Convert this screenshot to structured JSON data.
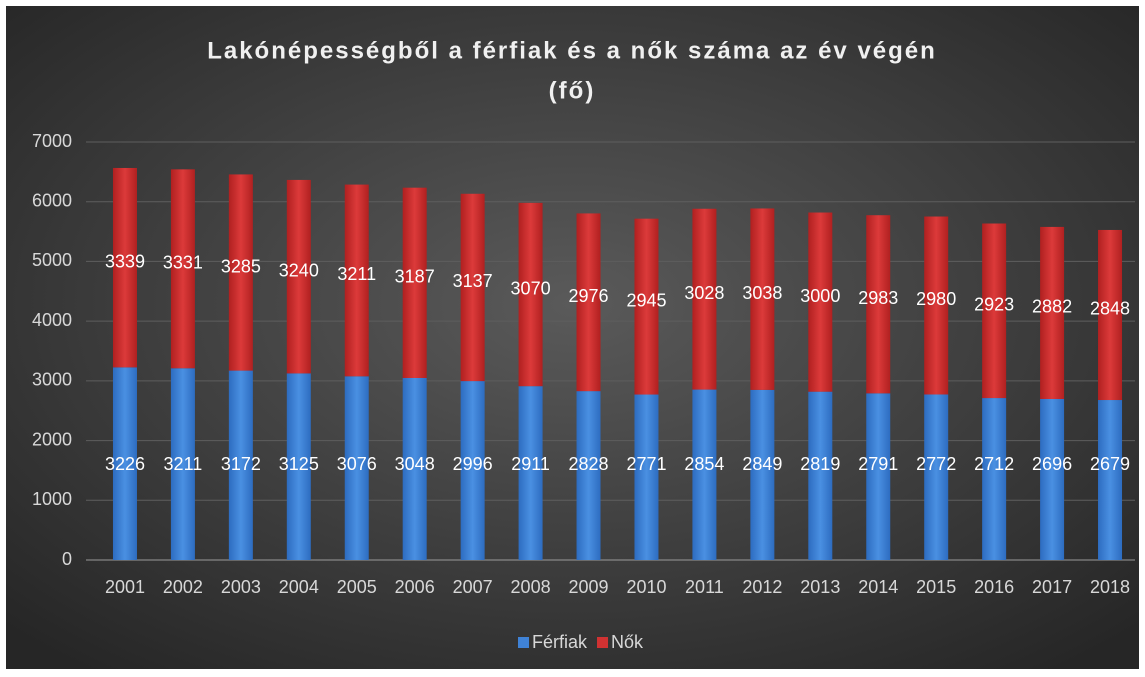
{
  "chart_data": {
    "type": "stacked_bar",
    "title": [
      "Lakónépességből a férfiak és a nők száma az év végén",
      "(fő)"
    ],
    "categories": [
      "2001",
      "2002",
      "2003",
      "2004",
      "2005",
      "2006",
      "2007",
      "2008",
      "2009",
      "2010",
      "2011",
      "2012",
      "2013",
      "2014",
      "2015",
      "2016",
      "2017",
      "2018"
    ],
    "series": [
      {
        "name": "Férfiak",
        "color": "#3f82d6",
        "values": [
          3226,
          3211,
          3172,
          3125,
          3076,
          3048,
          2996,
          2911,
          2828,
          2771,
          2854,
          2849,
          2819,
          2791,
          2772,
          2712,
          2696,
          2679
        ]
      },
      {
        "name": "Nők",
        "color": "#d03232",
        "values": [
          3339,
          3331,
          3285,
          3240,
          3211,
          3187,
          3137,
          3070,
          2976,
          2945,
          3028,
          3038,
          3000,
          2983,
          2980,
          2923,
          2882,
          2848
        ]
      }
    ],
    "ylim": [
      0,
      7000
    ],
    "yticks": [
      0,
      1000,
      2000,
      3000,
      4000,
      5000,
      6000,
      7000
    ],
    "grid": true,
    "legend": "bottom"
  }
}
